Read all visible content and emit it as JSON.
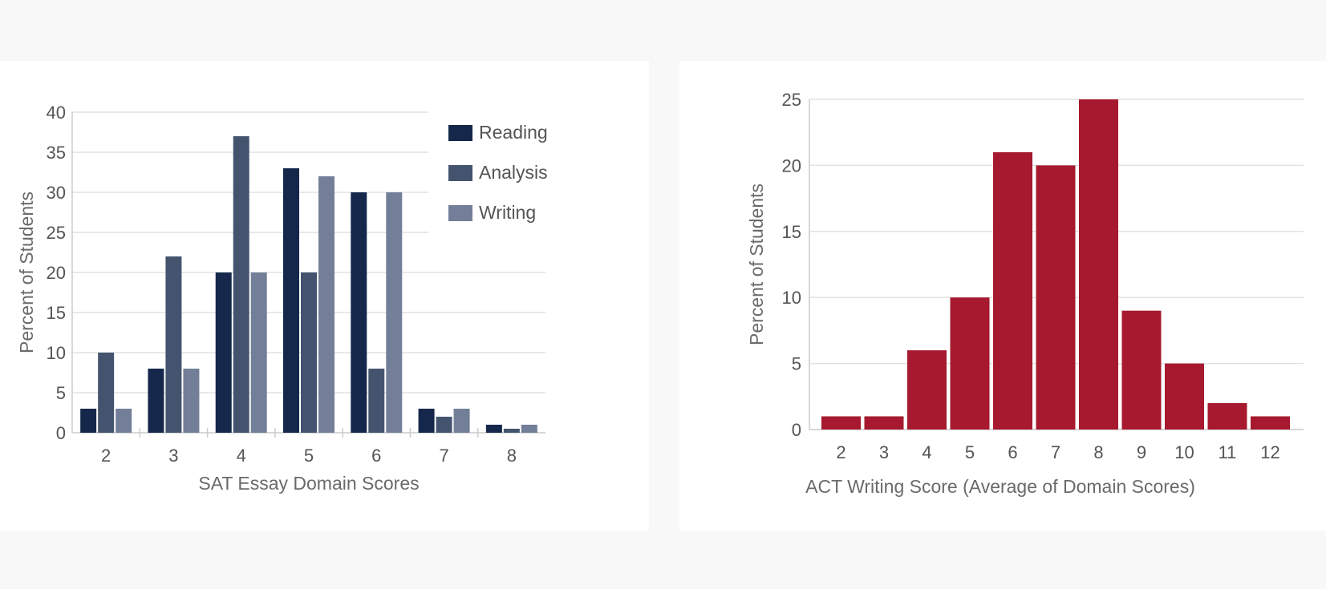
{
  "chart_data": [
    {
      "type": "bar",
      "categories": [
        "2",
        "3",
        "4",
        "5",
        "6",
        "7",
        "8"
      ],
      "series": [
        {
          "name": "Reading",
          "values": [
            3,
            8,
            20,
            33,
            30,
            3,
            1
          ]
        },
        {
          "name": "Analysis",
          "values": [
            10,
            22,
            37,
            20,
            8,
            2,
            0.5
          ]
        },
        {
          "name": "Writing",
          "values": [
            3,
            8,
            20,
            32,
            30,
            3,
            1
          ]
        }
      ],
      "xlabel": "SAT Essay Domain Scores",
      "ylabel": "Percent of Students",
      "ylim": [
        0,
        40
      ],
      "yticks": [
        0,
        5,
        10,
        15,
        20,
        25,
        30,
        35,
        40
      ],
      "grid": true,
      "legend": "top-right",
      "colors": [
        "#15284b",
        "#44546f",
        "#737f98"
      ]
    },
    {
      "type": "bar",
      "categories": [
        "2",
        "3",
        "4",
        "5",
        "6",
        "7",
        "8",
        "9",
        "10",
        "11",
        "12"
      ],
      "values": [
        1,
        1,
        6,
        10,
        21,
        20,
        25,
        9,
        5,
        2,
        1
      ],
      "xlabel": "ACT Writing Score (Average of Domain Scores)",
      "ylabel": "Percent of Students",
      "ylim": [
        0,
        25
      ],
      "yticks": [
        0,
        5,
        10,
        15,
        20,
        25
      ],
      "grid": true,
      "color": "#a6192e"
    }
  ]
}
